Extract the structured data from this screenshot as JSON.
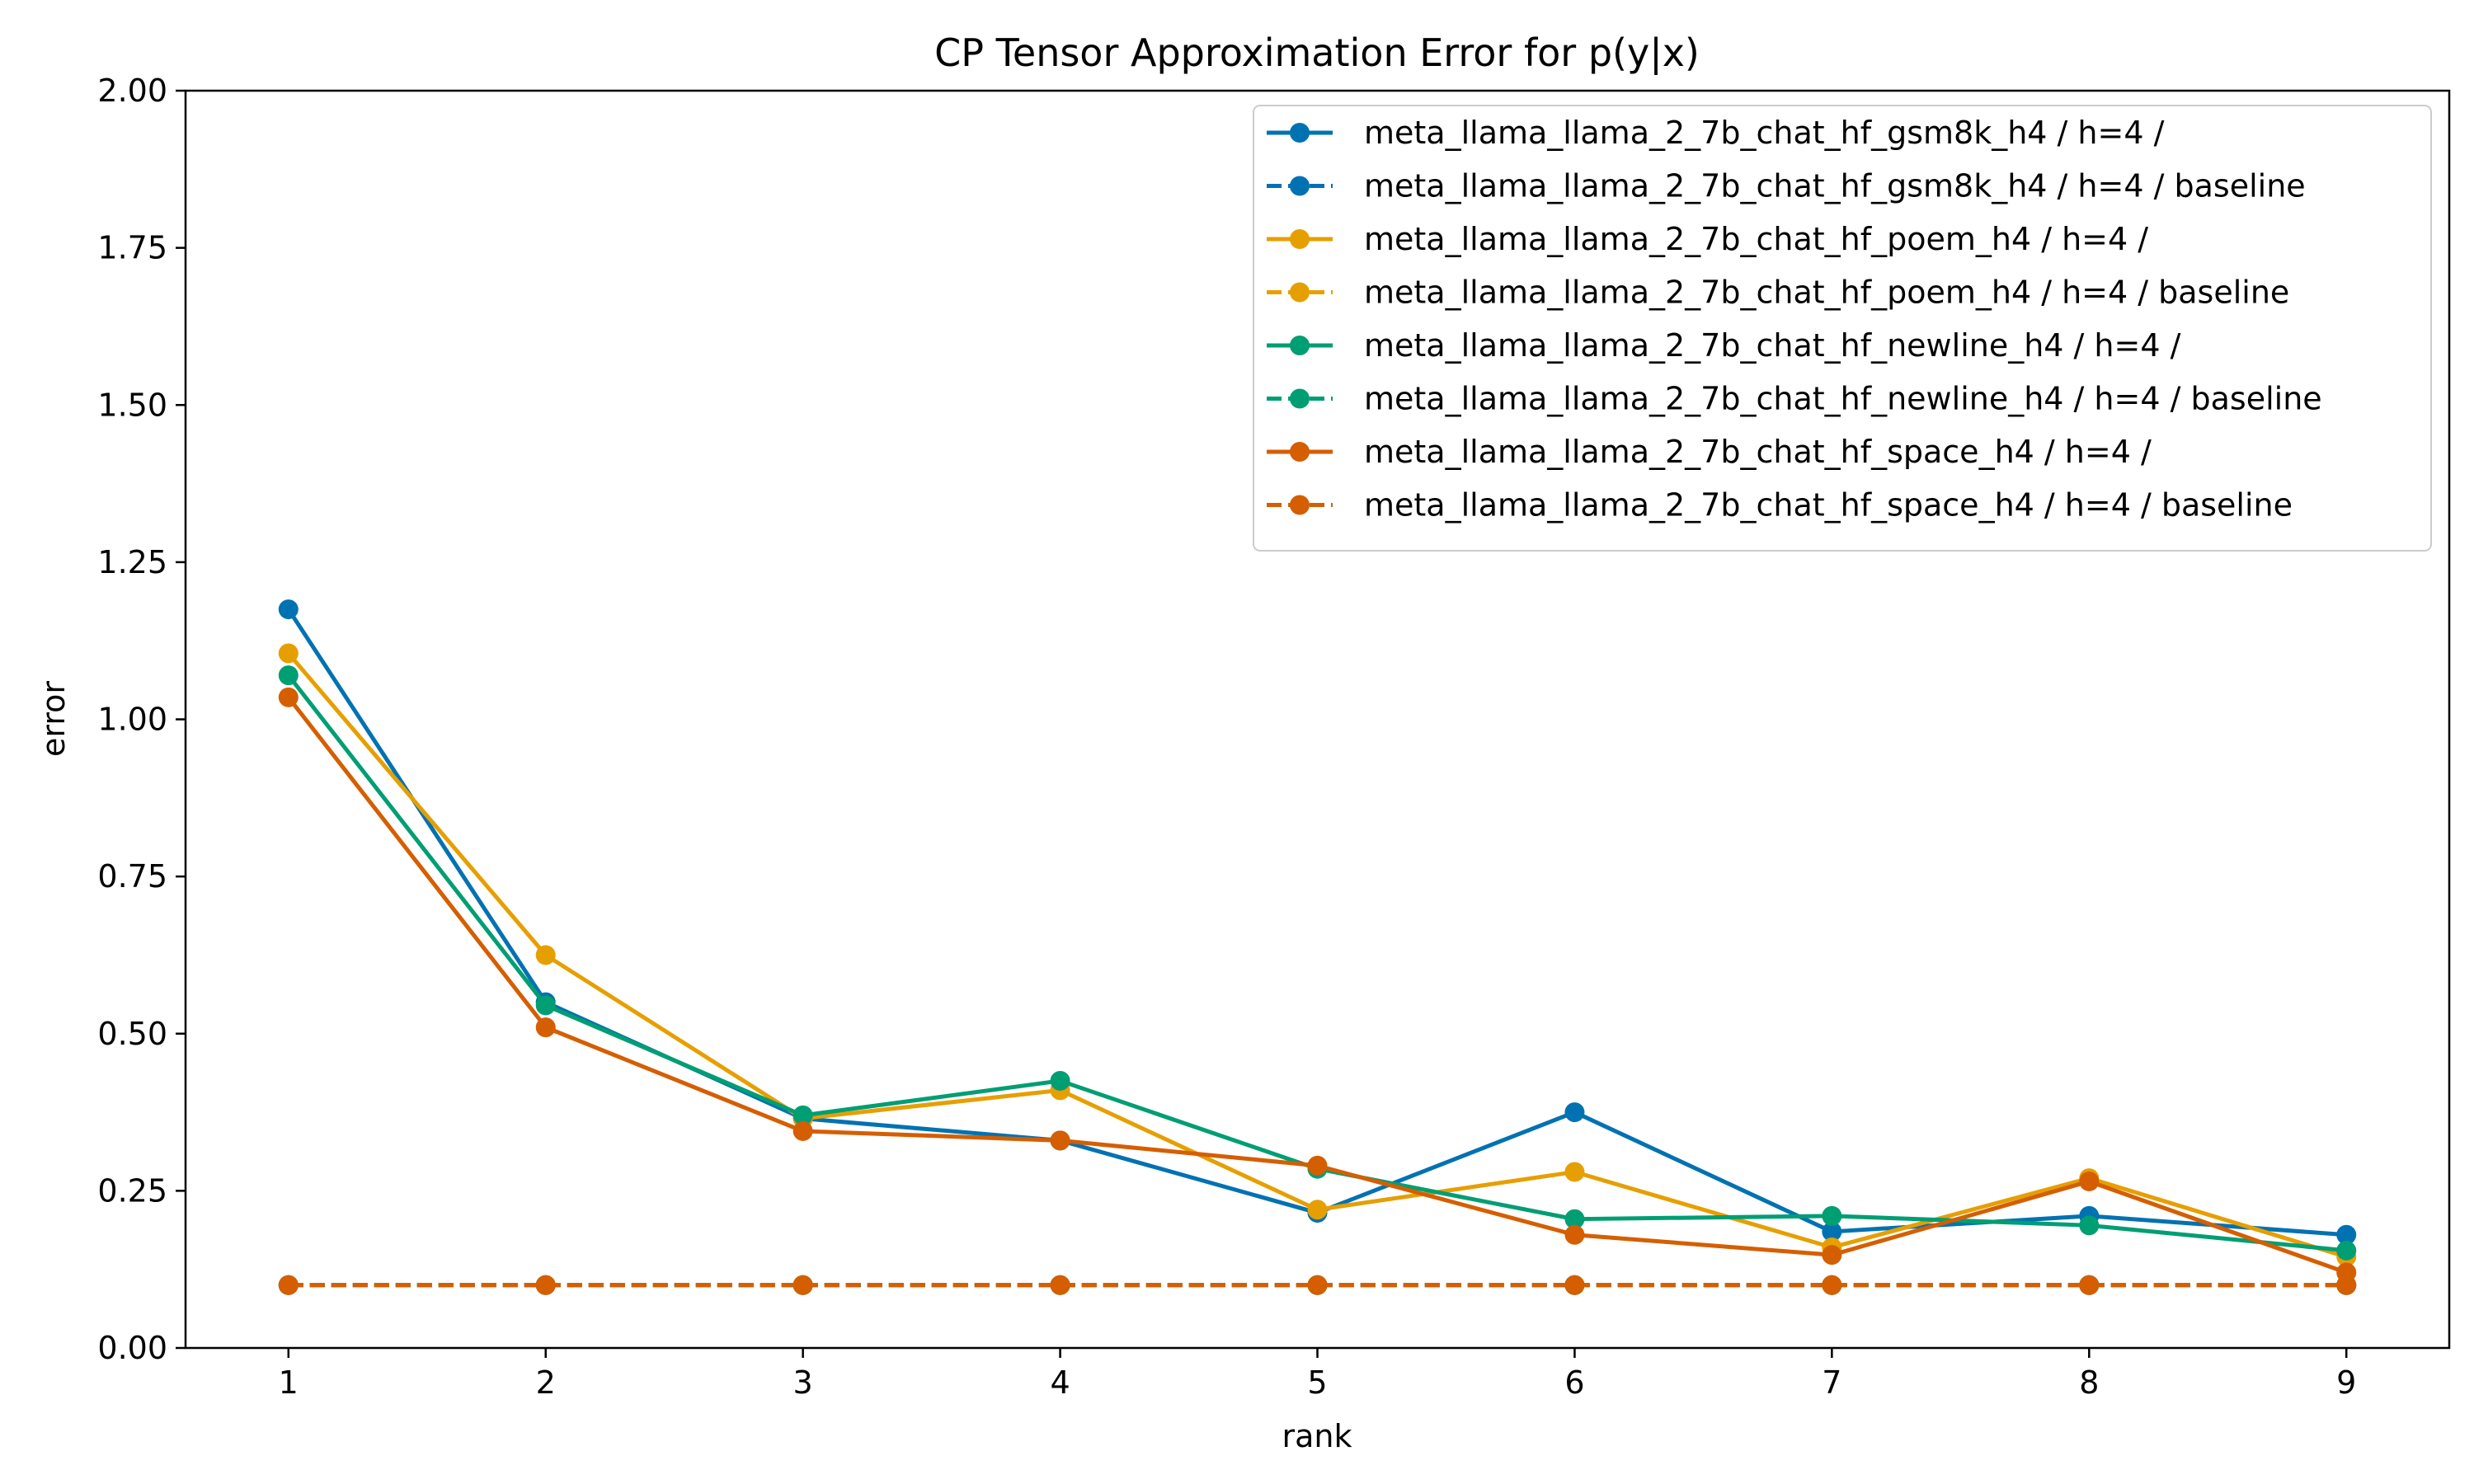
{
  "chart_data": {
    "type": "line",
    "title": "CP Tensor Approximation Error for p(y|x)",
    "xlabel": "rank",
    "ylabel": "error",
    "x": [
      1,
      2,
      3,
      4,
      5,
      6,
      7,
      8,
      9
    ],
    "xlim": [
      0.6,
      9.4
    ],
    "ylim": [
      0,
      2
    ],
    "xticks": [
      "1",
      "2",
      "3",
      "4",
      "5",
      "6",
      "7",
      "8",
      "9"
    ],
    "yticks": [
      "0.00",
      "0.25",
      "0.50",
      "0.75",
      "1.00",
      "1.25",
      "1.50",
      "1.75",
      "2.00"
    ],
    "grid": false,
    "legend_position": "top-right",
    "series": [
      {
        "name": "meta_llama_llama_2_7b_chat_hf_gsm8k_h4 / h=4 /",
        "color": "#0072b2",
        "style": "solid",
        "values": [
          1.175,
          0.55,
          0.365,
          0.33,
          0.215,
          0.375,
          0.185,
          0.21,
          0.18
        ]
      },
      {
        "name": "meta_llama_llama_2_7b_chat_hf_gsm8k_h4 / h=4 / baseline",
        "color": "#0072b2",
        "style": "dashed",
        "values": [
          0.1,
          0.1,
          0.1,
          0.1,
          0.1,
          0.1,
          0.1,
          0.1,
          0.1
        ]
      },
      {
        "name": "meta_llama_llama_2_7b_chat_hf_poem_h4 / h=4 /",
        "color": "#e69f00",
        "style": "solid",
        "values": [
          1.105,
          0.625,
          0.365,
          0.41,
          0.22,
          0.28,
          0.16,
          0.27,
          0.145
        ]
      },
      {
        "name": "meta_llama_llama_2_7b_chat_hf_poem_h4 / h=4 / baseline",
        "color": "#e69f00",
        "style": "dashed",
        "values": [
          0.1,
          0.1,
          0.1,
          0.1,
          0.1,
          0.1,
          0.1,
          0.1,
          0.1
        ]
      },
      {
        "name": "meta_llama_llama_2_7b_chat_hf_newline_h4 / h=4 /",
        "color": "#009e73",
        "style": "solid",
        "values": [
          1.07,
          0.545,
          0.37,
          0.425,
          0.285,
          0.205,
          0.21,
          0.195,
          0.155
        ]
      },
      {
        "name": "meta_llama_llama_2_7b_chat_hf_newline_h4 / h=4 / baseline",
        "color": "#009e73",
        "style": "dashed",
        "values": [
          0.1,
          0.1,
          0.1,
          0.1,
          0.1,
          0.1,
          0.1,
          0.1,
          0.1
        ]
      },
      {
        "name": "meta_llama_llama_2_7b_chat_hf_space_h4 / h=4 /",
        "color": "#d55e00",
        "style": "solid",
        "values": [
          1.035,
          0.51,
          0.345,
          0.33,
          0.29,
          0.18,
          0.148,
          0.265,
          0.12
        ]
      },
      {
        "name": "meta_llama_llama_2_7b_chat_hf_space_h4 / h=4 / baseline",
        "color": "#d55e00",
        "style": "dashed",
        "values": [
          0.1,
          0.1,
          0.1,
          0.1,
          0.1,
          0.1,
          0.1,
          0.1,
          0.1
        ]
      }
    ]
  }
}
